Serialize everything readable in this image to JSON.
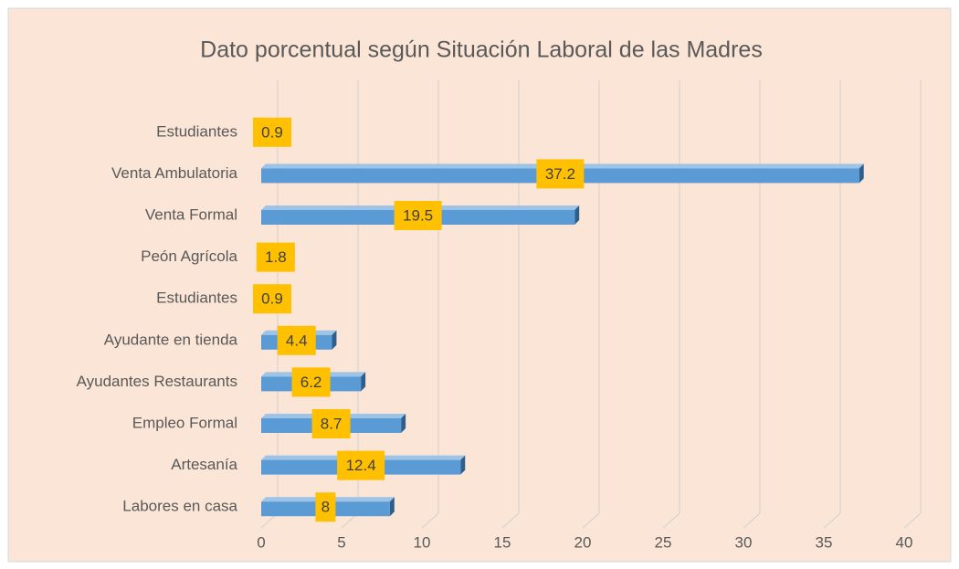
{
  "chart_data": {
    "type": "bar",
    "orientation": "horizontal",
    "title": "Dato porcentual según Situación Laboral de las Madres",
    "categories": [
      "Estudiantes",
      "Venta Ambulatoria",
      "Venta Formal",
      "Peón Agrícola",
      "Estudiantes",
      "Ayudante en tienda",
      "Ayudantes Restaurants",
      "Empleo Formal",
      "Artesanía",
      "Labores en casa"
    ],
    "values": [
      0.9,
      37.2,
      19.5,
      1.8,
      0.9,
      4.4,
      6.2,
      8.7,
      12.4,
      8
    ],
    "color": "#5b9bd5",
    "xlim": [
      0,
      40
    ],
    "xticks": [
      0,
      5,
      10,
      15,
      20,
      25,
      30,
      35,
      40
    ],
    "grid": true
  }
}
